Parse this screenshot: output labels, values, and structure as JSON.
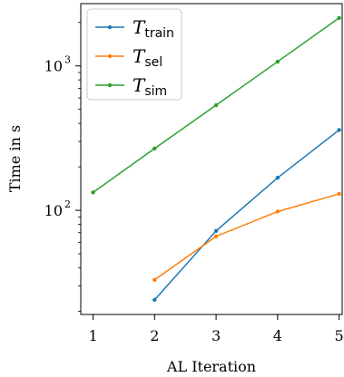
{
  "chart_data": {
    "type": "line",
    "xlabel": "AL Iteration",
    "ylabel": "Time in s",
    "yscale": "log",
    "xlim": [
      0.8,
      5.05
    ],
    "ylim": [
      19,
      2700
    ],
    "x_ticks": [
      1,
      2,
      3,
      4,
      5
    ],
    "y_ticks": [
      {
        "value": 100,
        "base": "10",
        "exp": "2"
      },
      {
        "value": 1000,
        "base": "10",
        "exp": "3"
      }
    ],
    "grid": false,
    "legend_position": "top-left",
    "series": [
      {
        "name": "T",
        "subscript": "train",
        "color": "#1f77b4",
        "x": [
          2,
          3,
          4,
          5
        ],
        "values": [
          24,
          72,
          168,
          360
        ]
      },
      {
        "name": "T",
        "subscript": "sel",
        "color": "#ff7f0e",
        "x": [
          2,
          3,
          4,
          5
        ],
        "values": [
          33,
          66,
          98,
          130
        ]
      },
      {
        "name": "T",
        "subscript": "sim",
        "color": "#2ca02c",
        "x": [
          1,
          2,
          3,
          4,
          5
        ],
        "values": [
          133,
          268,
          535,
          1070,
          2150
        ]
      }
    ]
  }
}
